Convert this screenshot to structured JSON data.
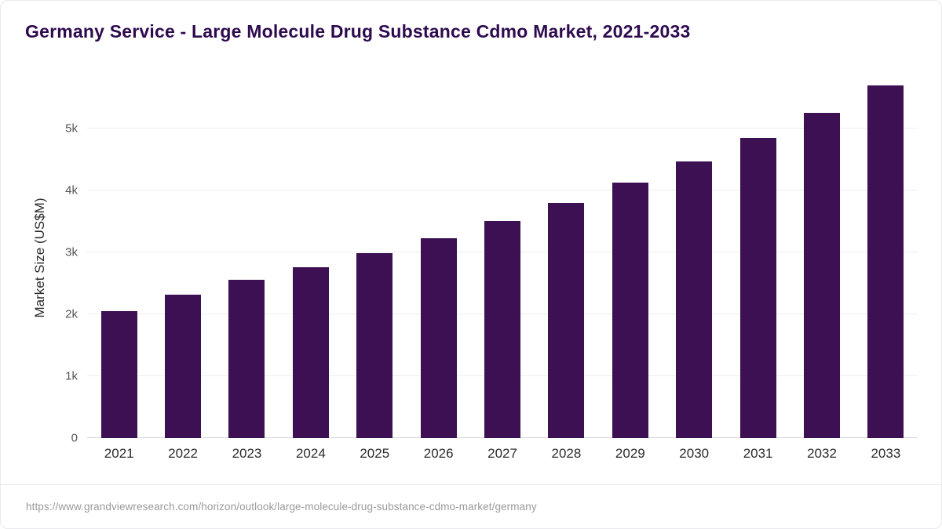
{
  "page": {
    "title": "Germany Service - Large Molecule Drug Substance Cdmo Market, 2021-2033",
    "source_url": "https://www.grandviewresearch.com/horizon/outlook/large-molecule-drug-substance-cdmo-market/germany"
  },
  "colors": {
    "bar": "#3d1054",
    "title_text": "#2e0a4f",
    "gridline": "#ededed",
    "baseline": "#d6d6d6",
    "tick_label": "#555555",
    "x_label": "#2b2b2b",
    "footer_text": "#9a9a9a"
  },
  "chart_data": {
    "type": "bar",
    "title": "Germany Service - Large Molecule Drug Substance Cdmo Market, 2021-2033",
    "categories": [
      "2021",
      "2022",
      "2023",
      "2024",
      "2025",
      "2026",
      "2027",
      "2028",
      "2029",
      "2030",
      "2031",
      "2032",
      "2033"
    ],
    "values": [
      2050,
      2320,
      2550,
      2760,
      2980,
      3230,
      3510,
      3800,
      4130,
      4470,
      4840,
      5250,
      5690
    ],
    "xlabel": "",
    "ylabel": "Market Size (US$M)",
    "ylim": [
      0,
      5820
    ],
    "yticks": [
      {
        "value": 0,
        "label": "0"
      },
      {
        "value": 1000,
        "label": "1k"
      },
      {
        "value": 2000,
        "label": "2k"
      },
      {
        "value": 3000,
        "label": "3k"
      },
      {
        "value": 4000,
        "label": "4k"
      },
      {
        "value": 5000,
        "label": "5k"
      }
    ],
    "grid": true,
    "legend": false,
    "bar_color": "#3d1054"
  }
}
